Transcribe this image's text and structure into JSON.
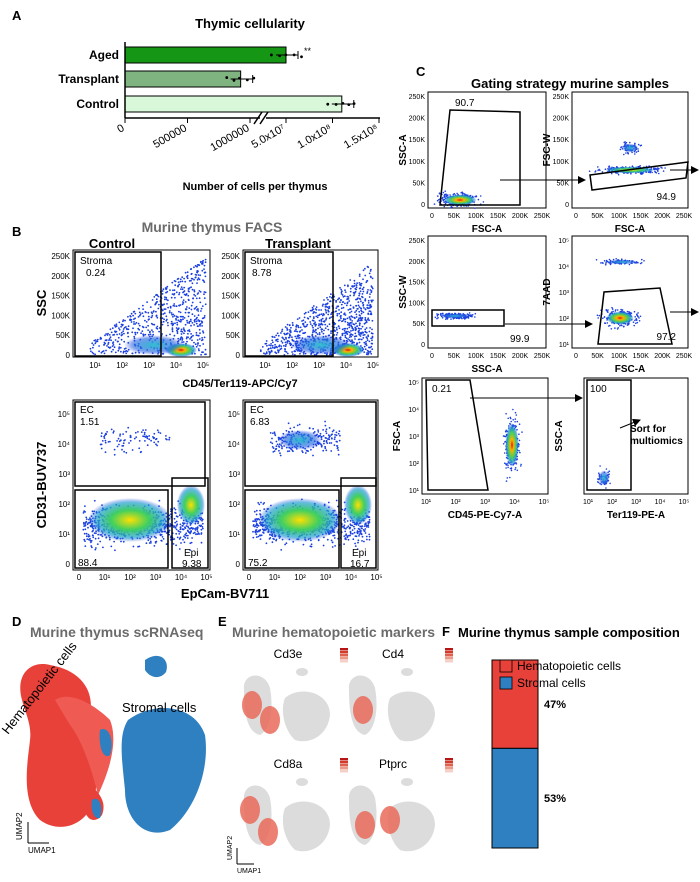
{
  "panels": {
    "A": {
      "label": "A",
      "chart_data": {
        "type": "bar",
        "title": "Thymic cellularity",
        "categories": [
          "Aged",
          "Transplant",
          "Control"
        ],
        "values": [
          50000000,
          1250000,
          110000000
        ],
        "colors": [
          "#159615",
          "#7fb37f",
          "#d9f7d9"
        ],
        "xlabel": "Number of cells per thymus",
        "xticks_low": [
          "0",
          "500000",
          "1000000"
        ],
        "xticks_high": [
          "5.0x10⁷",
          "1.0x10⁸",
          "1.5x10⁸"
        ]
      }
    },
    "B": {
      "label": "B",
      "title": "Murine thymus FACS",
      "col_titles": [
        "Control",
        "Transplant"
      ],
      "row1": {
        "ylabel": "SSC",
        "xlabel": "CD45/Ter119-APC/Cy7",
        "yticks": [
          "250K",
          "200K",
          "150K",
          "100K",
          "50K",
          "0"
        ],
        "xticks": [
          "10¹",
          "10²",
          "10³",
          "10⁴",
          "10⁵"
        ],
        "gates": [
          {
            "name": "Stroma",
            "value": "0.24"
          },
          {
            "name": "Stroma",
            "value": "8.78"
          }
        ]
      },
      "row2": {
        "ylabel": "CD31-BUV737",
        "xlabel": "EpCam-BV711",
        "yticks": [
          "10⁵",
          "10⁴",
          "10³",
          "10²",
          "10¹",
          "0"
        ],
        "xticks": [
          "0",
          "10¹",
          "10²",
          "10³",
          "10⁴",
          "10⁵"
        ],
        "gates_control": {
          "ec_name": "EC",
          "ec": "1.51",
          "neg": "88.4",
          "epi_name": "Epi",
          "epi": "9.38"
        },
        "gates_transplant": {
          "ec_name": "EC",
          "ec": "6.83",
          "neg": "75.2",
          "epi_name": "Epi",
          "epi": "16.7"
        }
      }
    },
    "C": {
      "label": "C",
      "title": "Gating strategy murine samples",
      "plots": [
        {
          "ylabel": "SSC-A",
          "xlabel": "FSC-A",
          "gate": "90.7"
        },
        {
          "ylabel": "FSC-W",
          "xlabel": "FSC-A",
          "gate": "94.9"
        },
        {
          "ylabel": "SSC-W",
          "xlabel": "SSC-A",
          "gate": "99.9"
        },
        {
          "ylabel": "7AAD",
          "xlabel": "FSC-A",
          "gate": "97.2"
        },
        {
          "ylabel": "FSC-A",
          "xlabel": "CD45-PE-Cy7-A",
          "gate": "0.21"
        },
        {
          "ylabel": "SSC-A",
          "xlabel": "Ter119-PE-A",
          "gate": "100"
        }
      ],
      "lin_ticks": [
        "0",
        "50K",
        "100K",
        "150K",
        "200K",
        "250K"
      ],
      "log_ticks": [
        "10¹",
        "10²",
        "10³",
        "10⁴",
        "10⁵"
      ],
      "sort_note": [
        "Sort for",
        "multiomics"
      ]
    },
    "D": {
      "label": "D",
      "title": "Murine thymus scRNAseq",
      "cluster_labels": [
        "Hematopoietic cells",
        "Stromal cells"
      ],
      "axes": [
        "UMAP2",
        "UMAP1"
      ],
      "colors": {
        "hematopoietic": "#e8413a",
        "stromal": "#2f80c0"
      }
    },
    "E": {
      "label": "E",
      "title": "Murine hematopoietic markers",
      "genes": [
        "Cd3e",
        "Cd4",
        "Cd8a",
        "Ptprc"
      ],
      "axes": [
        "UMAP2",
        "UMAP1"
      ]
    },
    "F": {
      "label": "F",
      "chart_data": {
        "type": "bar",
        "title": "Murine thymus sample composition",
        "stacked": true,
        "series": [
          {
            "name": "Hematopoietic cells",
            "value": 47,
            "label": "47%",
            "color": "#e8413a"
          },
          {
            "name": "Stromal cells",
            "value": 53,
            "label": "53%",
            "color": "#2f80c0"
          }
        ],
        "legend": "top-right"
      }
    }
  }
}
